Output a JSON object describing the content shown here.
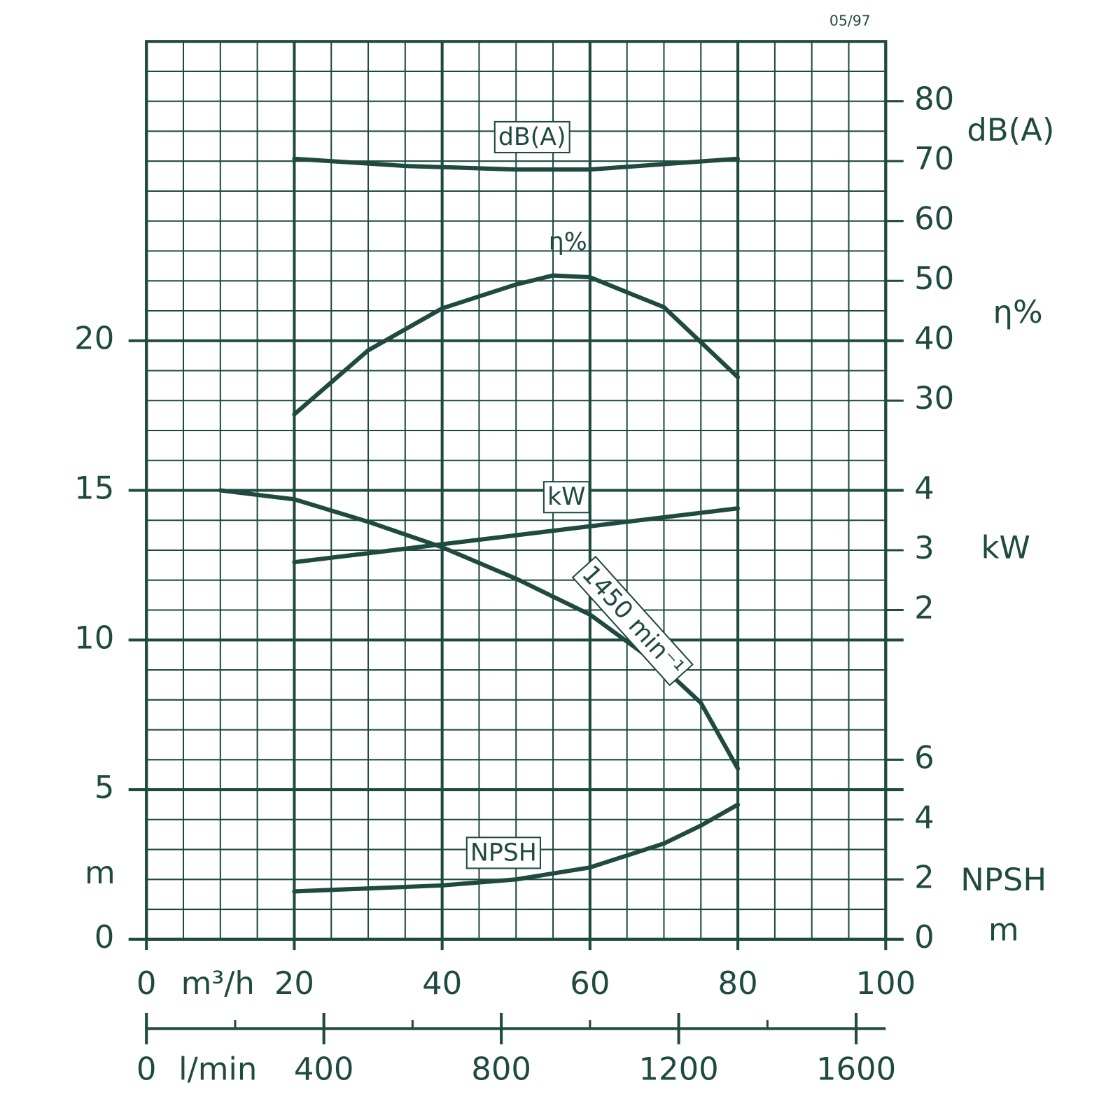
{
  "chart_data": {
    "type": "line",
    "note": "05/97",
    "xlabel": "m³/h",
    "x2label": "l/min",
    "ylabel": "m",
    "y2labels": [
      "dB(A)",
      "η%"
    ],
    "y3label": "kW",
    "y4labels": [
      "NPSH",
      "m"
    ],
    "xlim": [
      0,
      100
    ],
    "xticks": [
      0,
      20,
      40,
      60,
      80,
      100
    ],
    "x2lim": [
      0,
      1666.67
    ],
    "x2ticks": [
      0,
      400,
      800,
      1200,
      1600
    ],
    "x2minorticks": [
      200,
      600,
      1000,
      1400
    ],
    "ylim": [
      0,
      30
    ],
    "yticks": [
      0,
      5,
      10,
      15,
      20
    ],
    "y2lim": [
      -60,
      90
    ],
    "y2ticks": [
      30,
      40,
      50,
      60,
      70,
      80
    ],
    "y3lim": [
      -3.5,
      11.5
    ],
    "y3ticks": [
      2,
      3,
      4
    ],
    "y4lim": [
      0,
      30
    ],
    "y4ticks": [
      0,
      2,
      4,
      6
    ],
    "grid": true,
    "color": "#1e4a40",
    "series": [
      {
        "name": "dB(A)",
        "axis": "y2",
        "color": "#1e4a40",
        "x": [
          20,
          35,
          50,
          60,
          80
        ],
        "values": [
          70.4,
          69.2,
          68.6,
          68.6,
          70.4
        ]
      },
      {
        "name": "η%",
        "axis": "y2",
        "color": "#1e4a40",
        "x": [
          20,
          30,
          40,
          50,
          55,
          60,
          70,
          80
        ],
        "values": [
          27.7,
          38.4,
          45.4,
          49.4,
          50.9,
          50.6,
          45.6,
          33.9
        ]
      },
      {
        "name": "kW",
        "axis": "y3",
        "color": "#1e4a40",
        "x": [
          20,
          40,
          60,
          80
        ],
        "values": [
          2.8,
          3.1,
          3.4,
          3.7
        ]
      },
      {
        "name": "1450 min⁻¹",
        "axis": "y",
        "color": "#1e4a40",
        "x": [
          10,
          20,
          30,
          40,
          50,
          60,
          70,
          75,
          80
        ],
        "values": [
          15.0,
          14.7,
          13.95,
          13.1,
          12.05,
          10.85,
          9.05,
          7.9,
          5.7
        ]
      },
      {
        "name": "NPSH",
        "axis": "y4",
        "color": "#1e4a40",
        "x": [
          20,
          40,
          50,
          60,
          70,
          75,
          80
        ],
        "values": [
          1.6,
          1.8,
          2.0,
          2.4,
          3.2,
          3.8,
          4.5
        ]
      }
    ]
  }
}
